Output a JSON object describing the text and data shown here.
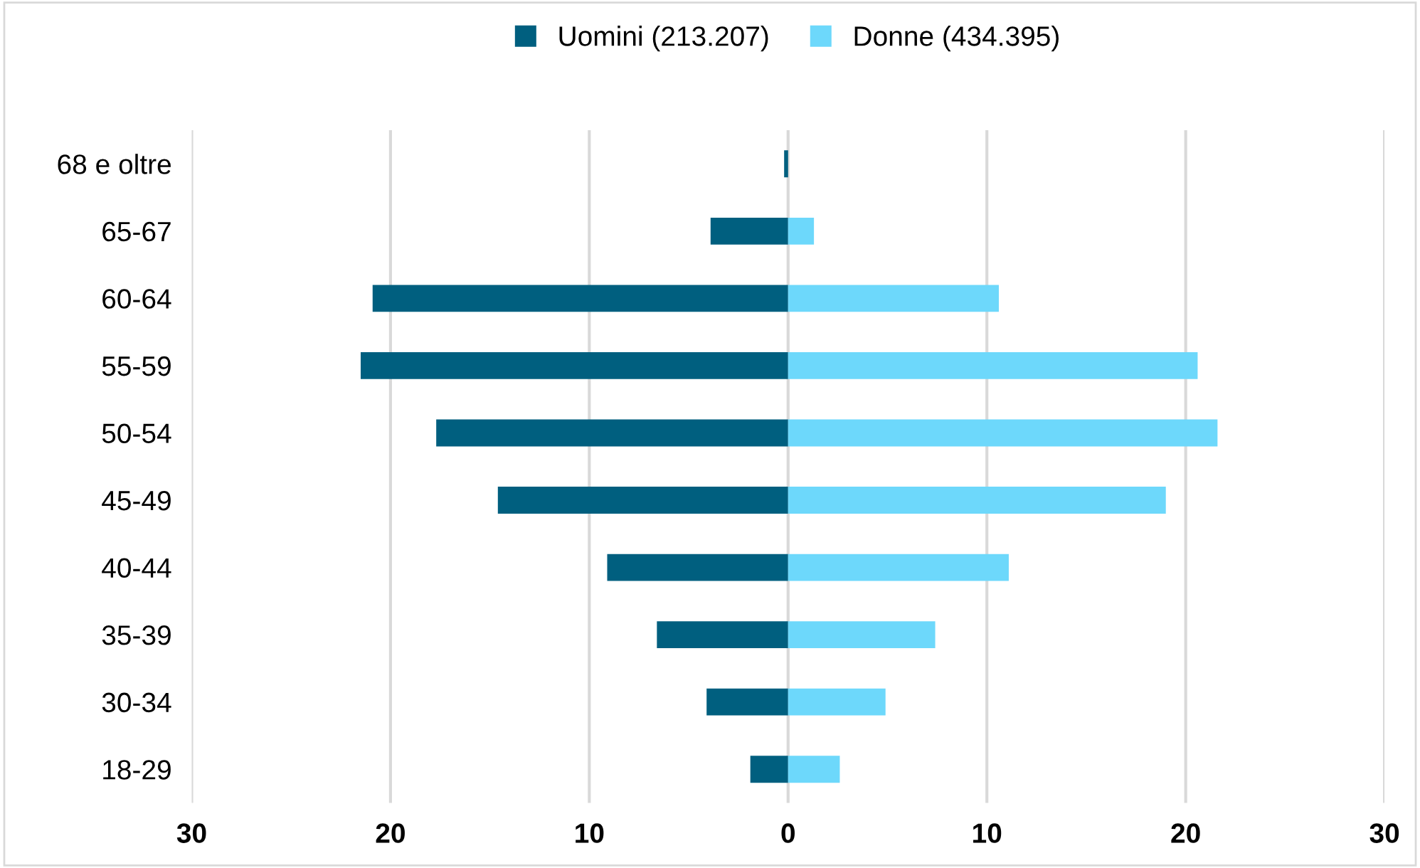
{
  "chart_data": {
    "type": "bar",
    "orientation": "horizontal",
    "categories": [
      "68 e oltre",
      "65-67",
      "60-64",
      "55-59",
      "50-54",
      "45-49",
      "40-44",
      "35-39",
      "30-34",
      "18-29"
    ],
    "series": [
      {
        "name": "Uomini (213.207)",
        "color": "#005f7f",
        "values": [
          -0.2,
          -3.9,
          -20.9,
          -21.5,
          -17.7,
          -14.6,
          -9.1,
          -6.6,
          -4.1,
          -1.9
        ]
      },
      {
        "name": "Donne (434.395)",
        "color": "#6dd8fb",
        "values": [
          null,
          1.3,
          10.6,
          20.6,
          21.6,
          19.0,
          11.1,
          7.4,
          4.9,
          2.6
        ]
      }
    ],
    "xlim": [
      -30,
      30
    ],
    "xticks": [
      {
        "value": -30,
        "label": "30"
      },
      {
        "value": -20,
        "label": "20"
      },
      {
        "value": -10,
        "label": "10"
      },
      0,
      10,
      20,
      30
    ],
    "grid": "x",
    "legend": "top",
    "stacked": true
  }
}
